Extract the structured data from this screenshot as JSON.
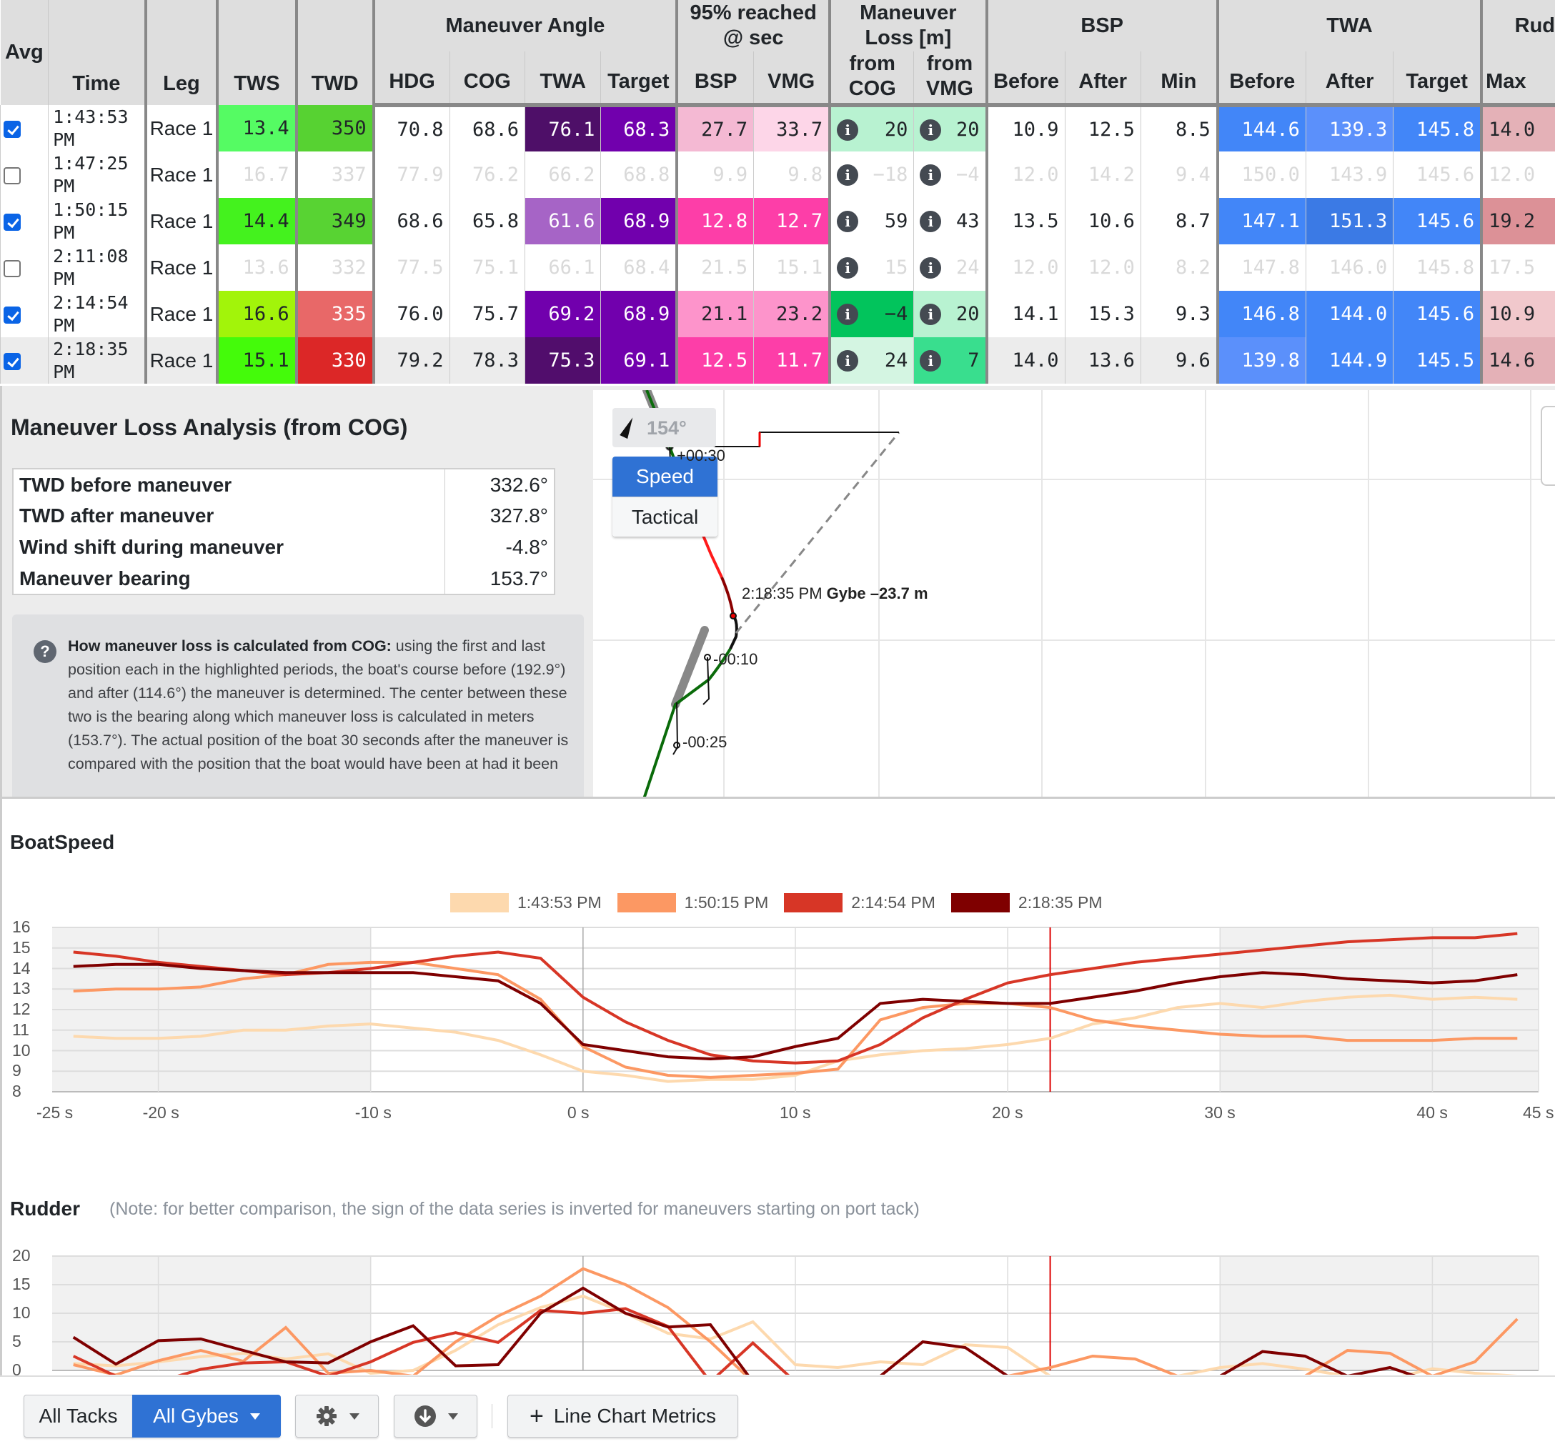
{
  "table": {
    "group_headers": {
      "maneuver_angle": "Maneuver Angle",
      "reached": "95% reached @ sec",
      "loss": "Maneuver Loss [m]",
      "bsp": "BSP",
      "twa": "TWA",
      "rudder": "Rud"
    },
    "headers": {
      "avg": "Avg",
      "time": "Time",
      "leg": "Leg",
      "tws": "TWS",
      "twd": "TWD",
      "hdg": "HDG",
      "cog": "COG",
      "twa": "TWA",
      "target": "Target",
      "r_bsp": "BSP",
      "r_vmg": "VMG",
      "loss_cog": "from COG",
      "loss_vmg": "from VMG",
      "bsp_before": "Before",
      "bsp_after": "After",
      "bsp_min": "Min",
      "twa_before": "Before",
      "twa_after": "After",
      "twa_target": "Target",
      "rud_max": "Max"
    },
    "rows": [
      {
        "checked": true,
        "time": "1:43:53 PM",
        "leg": "Race 1",
        "tws": "13.4",
        "twd": "350",
        "hdg": "70.8",
        "cog": "68.6",
        "twa": "76.1",
        "target": "68.3",
        "r_bsp": "27.7",
        "r_vmg": "33.7",
        "loss_cog": "20",
        "loss_vmg": "20",
        "bsp_before": "10.9",
        "bsp_after": "12.5",
        "bsp_min": "8.5",
        "twa_before": "144.6",
        "twa_after": "139.3",
        "twa_target": "145.8",
        "rud_max": "14.0",
        "colors": {
          "tws": "#55fb63",
          "twd": "#57d232",
          "twa": "#4e0f68",
          "target": "#7100ad",
          "r_bsp": "#f4b9d3",
          "r_vmg": "#fdd6e8",
          "loss_cog": "#b8f2d1",
          "loss_vmg": "#b8f2d1",
          "twa_before": "#4286f8",
          "twa_after": "#5b90fb",
          "twa_target": "#4286f8",
          "rud_max": "#e4b1b7"
        }
      },
      {
        "checked": false,
        "time": "1:47:25 PM",
        "leg": "Race 1",
        "tws": "16.7",
        "twd": "337",
        "hdg": "77.9",
        "cog": "76.2",
        "twa": "66.2",
        "target": "68.8",
        "r_bsp": "9.9",
        "r_vmg": "9.8",
        "loss_cog": "−18",
        "loss_vmg": "−4",
        "bsp_before": "12.0",
        "bsp_after": "14.2",
        "bsp_min": "9.4",
        "twa_before": "150.0",
        "twa_after": "143.9",
        "twa_target": "145.6",
        "rud_max": "12.0",
        "colors": {}
      },
      {
        "checked": true,
        "time": "1:50:15 PM",
        "leg": "Race 1",
        "tws": "14.4",
        "twd": "349",
        "hdg": "68.6",
        "cog": "65.8",
        "twa": "61.6",
        "target": "68.9",
        "r_bsp": "12.8",
        "r_vmg": "12.7",
        "loss_cog": "59",
        "loss_vmg": "43",
        "bsp_before": "13.5",
        "bsp_after": "10.6",
        "bsp_min": "8.7",
        "twa_before": "147.1",
        "twa_after": "151.3",
        "twa_target": "145.6",
        "rud_max": "19.2",
        "colors": {
          "tws": "#44f21e",
          "twd": "#58d333",
          "twa": "#a664c6",
          "target": "#7100ad",
          "r_bsp": "#fd3ea8",
          "r_vmg": "#fd3ea8",
          "twa_before": "#4286f8",
          "twa_after": "#3b7ae5",
          "twa_target": "#4286f8",
          "rud_max": "#dc9197"
        }
      },
      {
        "checked": false,
        "time": "2:11:08 PM",
        "leg": "Race 1",
        "tws": "13.6",
        "twd": "332",
        "hdg": "77.5",
        "cog": "75.1",
        "twa": "66.1",
        "target": "68.4",
        "r_bsp": "21.5",
        "r_vmg": "15.1",
        "loss_cog": "15",
        "loss_vmg": "24",
        "bsp_before": "12.0",
        "bsp_after": "12.0",
        "bsp_min": "8.2",
        "twa_before": "147.8",
        "twa_after": "146.0",
        "twa_target": "145.8",
        "rud_max": "17.5",
        "colors": {}
      },
      {
        "checked": true,
        "time": "2:14:54 PM",
        "leg": "Race 1",
        "tws": "16.6",
        "twd": "335",
        "hdg": "76.0",
        "cog": "75.7",
        "twa": "69.2",
        "target": "68.9",
        "r_bsp": "21.1",
        "r_vmg": "23.2",
        "loss_cog": "−4",
        "loss_vmg": "20",
        "bsp_before": "14.1",
        "bsp_after": "15.3",
        "bsp_min": "9.3",
        "twa_before": "146.8",
        "twa_after": "144.0",
        "twa_target": "145.6",
        "rud_max": "10.9",
        "colors": {
          "tws": "#a2f40a",
          "twd": "#e86868",
          "twa": "#7100ad",
          "target": "#7100ad",
          "r_bsp": "#fd94cb",
          "r_vmg": "#fd94cb",
          "loss_cog": "#02c45c",
          "loss_vmg": "#b8f2d1",
          "twa_before": "#4286f8",
          "twa_after": "#4286f8",
          "twa_target": "#4286f8",
          "rud_max": "#f1c8cc"
        }
      },
      {
        "checked": true,
        "time": "2:18:35 PM",
        "leg": "Race 1",
        "tws": "15.1",
        "twd": "330",
        "hdg": "79.2",
        "cog": "78.3",
        "twa": "75.3",
        "target": "69.1",
        "r_bsp": "12.5",
        "r_vmg": "11.7",
        "loss_cog": "24",
        "loss_vmg": "7",
        "bsp_before": "14.0",
        "bsp_after": "13.6",
        "bsp_min": "9.6",
        "twa_before": "139.8",
        "twa_after": "144.9",
        "twa_target": "145.5",
        "rud_max": "14.6",
        "highlighted": true,
        "colors": {
          "tws": "#44fb0a",
          "twd": "#dc2727",
          "twa": "#510d6c",
          "target": "#7100ad",
          "r_bsp": "#fd3ea8",
          "r_vmg": "#fd3ea8",
          "loss_cog": "#d4f5e2",
          "loss_vmg": "#39de8e",
          "twa_before": "#5b90fb",
          "twa_after": "#4286f8",
          "twa_target": "#4286f8",
          "rud_max": "#e4b1b7"
        }
      }
    ]
  },
  "analysis": {
    "title": "Maneuver Loss Analysis (from COG)",
    "stats": [
      {
        "label": "TWD before maneuver",
        "value": "332.6°"
      },
      {
        "label": "TWD after maneuver",
        "value": "327.8°"
      },
      {
        "label": "Wind shift during maneuver",
        "value": "-4.8°"
      },
      {
        "label": "Maneuver bearing",
        "value": "153.7°"
      }
    ],
    "help_title": "How maneuver loss is calculated from COG:",
    "help_text": " using the first and last position each in the highlighted periods, the boat's course before (192.9°) and after (114.6°) the maneuver is determined. The center between these two is the bearing along which maneuver loss is calculated in meters (153.7°). The actual position of the boat 30 seconds after the maneuver is compared with the position that the boat would have been at had it been"
  },
  "map": {
    "bearing": "154°",
    "modes": {
      "speed": "Speed",
      "tactical": "Tactical"
    },
    "labels": {
      "plus30": "+00:30",
      "maneuver_time": "2:18:35 PM",
      "maneuver_desc": "Gybe –23.7 m",
      "minus10": "-00:10",
      "minus25": "-00:25"
    }
  },
  "charts": {
    "boatspeed_title": "BoatSpeed",
    "rudder_title": "Rudder",
    "rudder_note": "(Note: for better comparison, the sign of the data series is inverted for maneuvers starting on port tack)"
  },
  "chart_data": [
    {
      "type": "line",
      "title": "BoatSpeed",
      "xlabel": "",
      "ylabel": "",
      "x_ticks": [
        "-25 s",
        "-20 s",
        "-10 s",
        "0 s",
        "10 s",
        "20 s",
        "30 s",
        "40 s",
        "45 s"
      ],
      "y_ticks": [
        8,
        9,
        10,
        11,
        12,
        13,
        14,
        15,
        16
      ],
      "xlim": [
        -25,
        45
      ],
      "ylim": [
        8,
        16
      ],
      "grid": true,
      "legend_position": "top",
      "shaded_regions": [
        [
          -25,
          -10
        ],
        [
          30,
          45
        ]
      ],
      "marker_line_x": 22,
      "x": [
        -24,
        -22,
        -20,
        -18,
        -16,
        -14,
        -12,
        -10,
        -8,
        -6,
        -4,
        -2,
        0,
        2,
        4,
        6,
        8,
        10,
        12,
        14,
        16,
        18,
        20,
        22,
        24,
        26,
        28,
        30,
        32,
        34,
        36,
        38,
        40,
        42,
        44
      ],
      "series": [
        {
          "name": "1:43:53 PM",
          "color": "#fdd9ae",
          "values": [
            10.7,
            10.6,
            10.6,
            10.7,
            11.0,
            11.0,
            11.2,
            11.3,
            11.1,
            10.9,
            10.5,
            9.8,
            9.0,
            8.8,
            8.5,
            8.6,
            8.6,
            8.8,
            9.5,
            9.8,
            10.0,
            10.1,
            10.3,
            10.6,
            11.3,
            11.6,
            12.1,
            12.3,
            12.1,
            12.4,
            12.6,
            12.7,
            12.5,
            12.6,
            12.5
          ]
        },
        {
          "name": "1:50:15 PM",
          "color": "#fc9863",
          "values": [
            12.9,
            13.0,
            13.0,
            13.1,
            13.5,
            13.7,
            14.2,
            14.3,
            14.3,
            14.0,
            13.7,
            12.5,
            10.2,
            9.2,
            8.8,
            8.7,
            8.8,
            8.9,
            9.1,
            11.5,
            12.1,
            12.3,
            12.3,
            12.1,
            11.5,
            11.2,
            11.0,
            10.8,
            10.7,
            10.7,
            10.5,
            10.5,
            10.5,
            10.6,
            10.6
          ]
        },
        {
          "name": "2:14:54 PM",
          "color": "#d73626",
          "values": [
            14.8,
            14.6,
            14.3,
            14.1,
            13.9,
            13.7,
            13.8,
            14.0,
            14.3,
            14.6,
            14.8,
            14.5,
            12.6,
            11.4,
            10.5,
            9.8,
            9.5,
            9.4,
            9.5,
            10.3,
            11.6,
            12.5,
            13.3,
            13.7,
            14.0,
            14.3,
            14.5,
            14.7,
            14.9,
            15.1,
            15.3,
            15.4,
            15.5,
            15.5,
            15.7
          ]
        },
        {
          "name": "2:18:35 PM",
          "color": "#7f0000",
          "values": [
            14.1,
            14.2,
            14.2,
            14.0,
            13.9,
            13.8,
            13.8,
            13.8,
            13.8,
            13.6,
            13.4,
            12.3,
            10.3,
            10.0,
            9.7,
            9.6,
            9.7,
            10.2,
            10.6,
            12.3,
            12.5,
            12.4,
            12.3,
            12.3,
            12.6,
            12.9,
            13.3,
            13.6,
            13.8,
            13.7,
            13.5,
            13.4,
            13.3,
            13.4,
            13.7
          ]
        }
      ]
    },
    {
      "type": "line",
      "title": "Rudder",
      "xlabel": "",
      "ylabel": "",
      "y_ticks": [
        0,
        5,
        10,
        15,
        20
      ],
      "xlim": [
        -25,
        45
      ],
      "ylim_visible": [
        0,
        20
      ],
      "grid": true,
      "shaded_regions": [
        [
          -25,
          -10
        ],
        [
          30,
          45
        ]
      ],
      "marker_line_x": 22,
      "x": [
        -24,
        -22,
        -20,
        -18,
        -16,
        -14,
        -12,
        -10,
        -8,
        -6,
        -4,
        -2,
        0,
        2,
        4,
        6,
        8,
        10,
        12,
        14,
        16,
        18,
        20,
        22,
        24,
        26,
        28,
        30,
        32,
        34,
        36,
        38,
        40,
        42,
        44
      ],
      "series": [
        {
          "name": "1:43:53 PM",
          "color": "#fdd9ae",
          "values": [
            1.2,
            0.8,
            1.5,
            2.4,
            3.0,
            2.0,
            2.9,
            -0.5,
            0.0,
            3.5,
            8.0,
            11.0,
            13.0,
            10.0,
            6.5,
            5.5,
            8.5,
            1.0,
            0.5,
            1.5,
            1.0,
            4.5,
            4.0,
            -1.0,
            -1.5,
            -2.0,
            -1.0,
            0.5,
            1.2,
            0.2,
            -1.0,
            -1.5,
            0.3,
            -0.5,
            -1.0
          ]
        },
        {
          "name": "1:50:15 PM",
          "color": "#fc9863",
          "values": [
            1.0,
            -0.8,
            1.7,
            3.5,
            1.6,
            7.5,
            -0.5,
            0.0,
            -1.0,
            5.0,
            9.5,
            13.0,
            17.8,
            15.0,
            11.0,
            5.0,
            -2.0,
            -2.0,
            -1.5,
            -2.0,
            -2.0,
            -2.0,
            -1.0,
            0.5,
            2.5,
            2.0,
            -1.0,
            -2.0,
            -2.0,
            -1.0,
            3.5,
            3.0,
            -1.0,
            1.5,
            9.0
          ]
        },
        {
          "name": "2:14:54 PM",
          "color": "#d73626",
          "values": [
            2.5,
            -1.0,
            -2.0,
            0.2,
            1.3,
            1.5,
            -1.0,
            1.5,
            4.9,
            6.6,
            4.9,
            10.5,
            10.0,
            10.8,
            7.7,
            -2.0,
            4.8,
            -2.0,
            -2.0,
            -2.0,
            -2.0,
            -2.0,
            -2.0,
            -2.0,
            -2.0,
            -2.0,
            -2.0,
            -2.0,
            -2.0,
            -2.0,
            -2.0,
            -2.0,
            -2.0,
            -2.0,
            -2.0
          ]
        },
        {
          "name": "2:18:35 PM",
          "color": "#7f0000",
          "values": [
            5.8,
            1.1,
            5.2,
            5.5,
            3.5,
            1.5,
            1.3,
            5.0,
            7.8,
            0.8,
            1.0,
            10.0,
            14.4,
            10.0,
            7.6,
            8.0,
            -2.0,
            -1.5,
            -2.0,
            -1.0,
            5.0,
            4.0,
            -1.0,
            -2.0,
            -2.0,
            -2.0,
            -2.0,
            -1.0,
            3.3,
            2.5,
            -1.0,
            0.5,
            -2.0,
            -2.0,
            -2.0
          ]
        }
      ]
    }
  ],
  "toolbar": {
    "all_tacks": "All Tacks",
    "all_gybes": "All Gybes",
    "line_chart_metrics": "Line Chart Metrics",
    "plus": "+"
  }
}
